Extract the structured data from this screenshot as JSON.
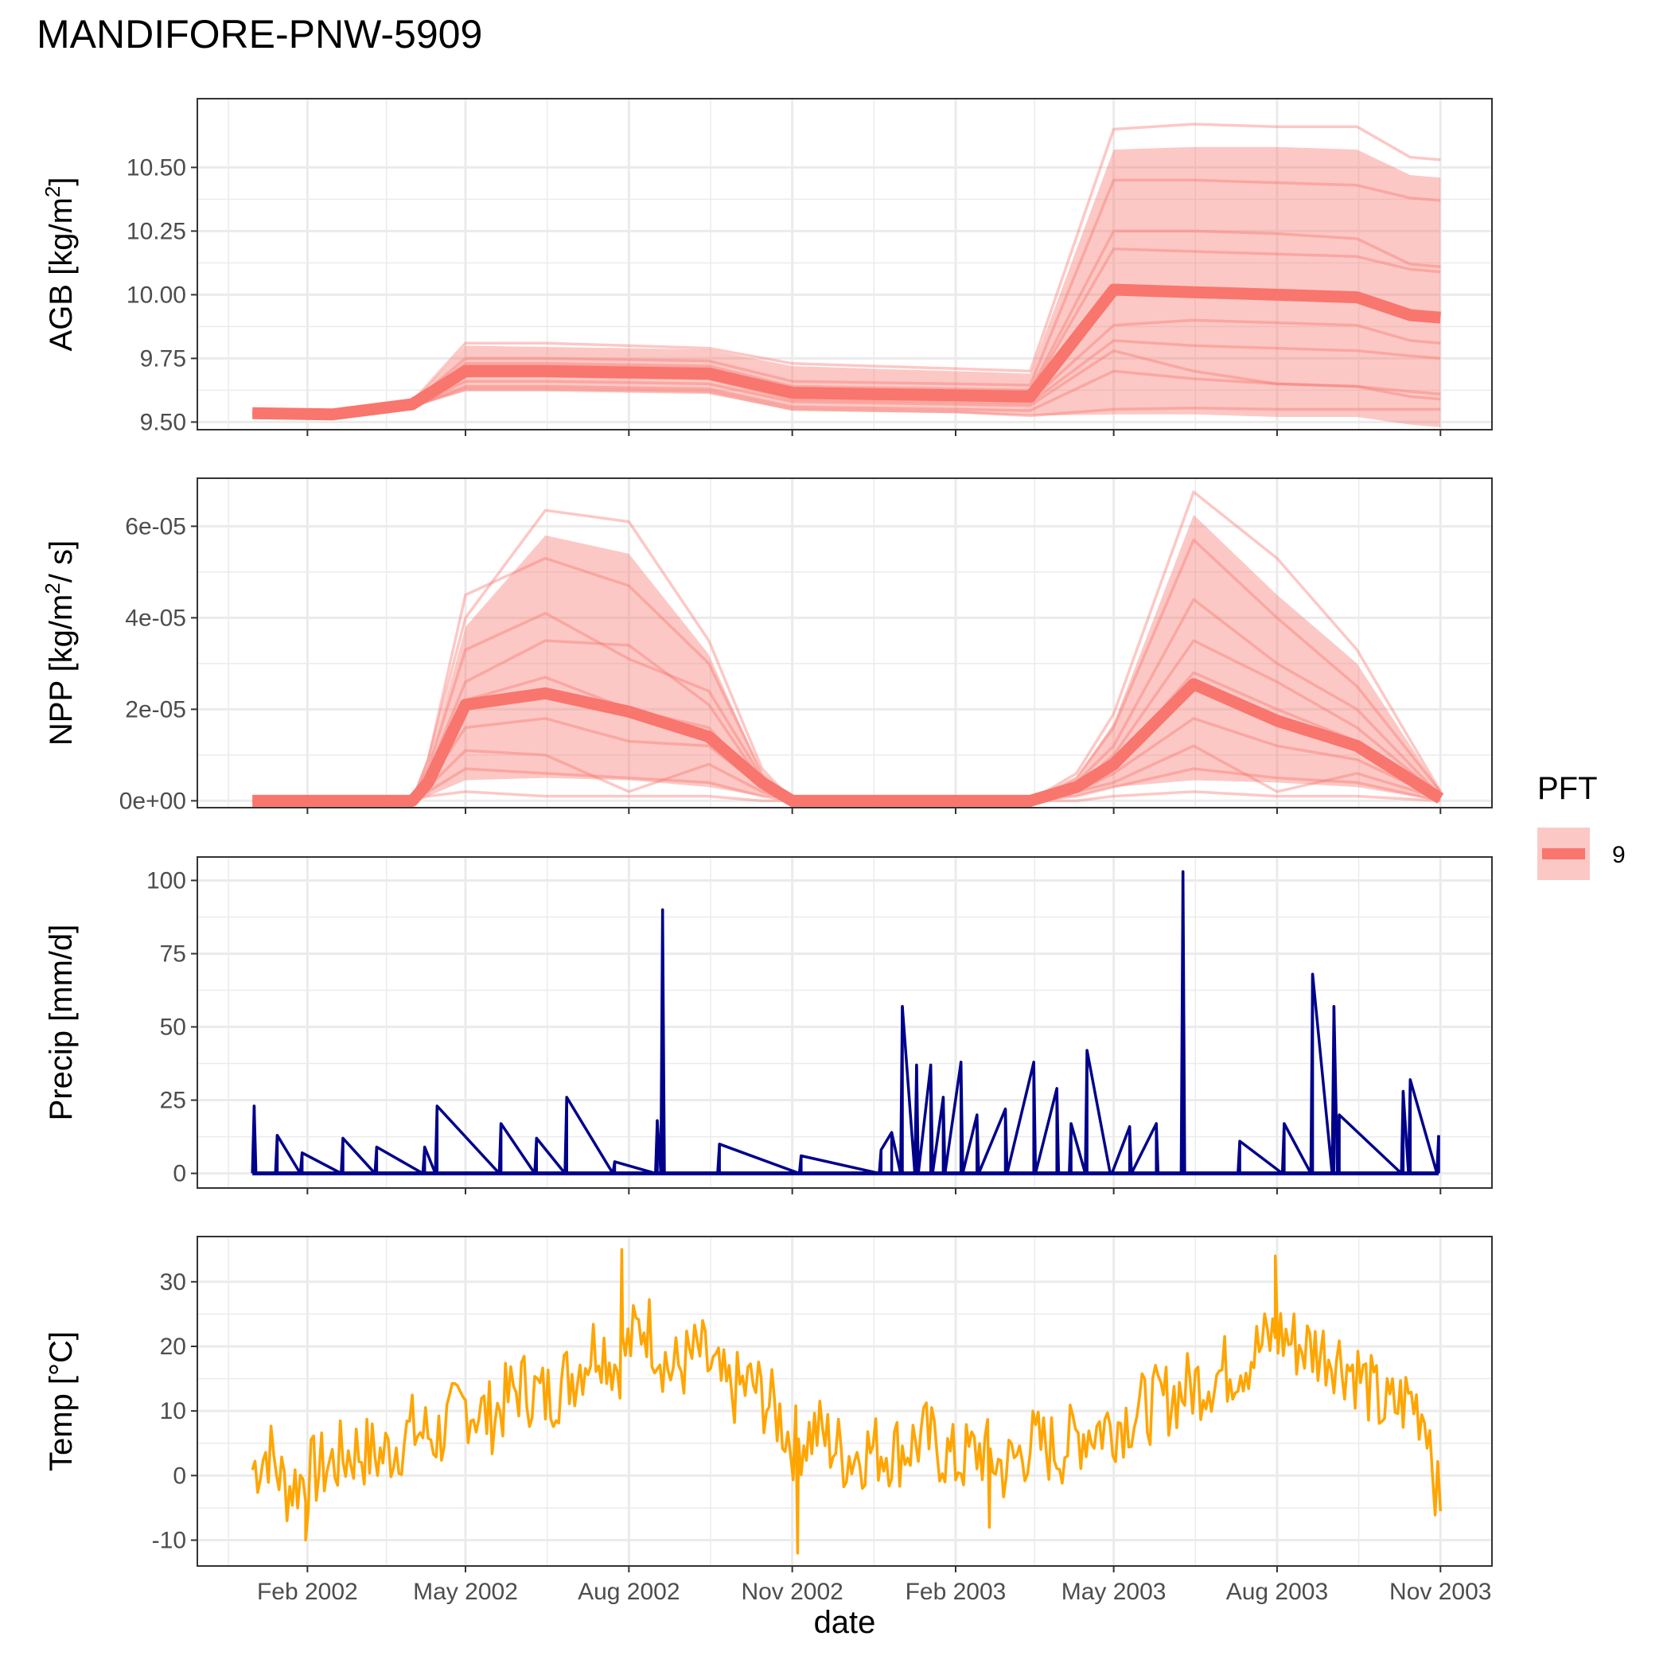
{
  "title": "MANDIFORE-PNW-5909",
  "x_axis": {
    "label": "date",
    "tick_labels": [
      "Feb 2002",
      "May 2002",
      "Aug 2002",
      "Nov 2002",
      "Feb 2003",
      "May 2003",
      "Aug 2003",
      "Nov 2003"
    ],
    "tick_dates": [
      "2002-02-01",
      "2002-05-01",
      "2002-08-01",
      "2002-11-01",
      "2003-02-01",
      "2003-05-01",
      "2003-08-01",
      "2003-11-01"
    ],
    "range": [
      "2001-12-01",
      "2003-11-30"
    ]
  },
  "legend": {
    "title": "PFT",
    "items": [
      {
        "label": "9",
        "line_color": "#F8766D",
        "band_color": "#F8766D"
      }
    ],
    "placement": "right"
  },
  "colors": {
    "pft": "#F8766D",
    "precip": "#00008B",
    "temp": "#FFA500",
    "grid": "#EBEBEB",
    "panel_border": "#333333"
  },
  "chart_data": [
    {
      "type": "line",
      "name": "agb",
      "ylabel": "AGB [kg/m²]",
      "ylabel_main": "AGB [kg/m",
      "ylabel_sup": "2",
      "ylabel_end": "]",
      "ylim": [
        9.47,
        10.77
      ],
      "yticks": [
        9.5,
        9.75,
        10.0,
        10.25,
        10.5
      ],
      "ytick_labels": [
        "9.50",
        "9.75",
        "10.00",
        "10.25",
        "10.50"
      ],
      "x": [
        "2002-01-01",
        "2002-02-15",
        "2002-04-01",
        "2002-05-01",
        "2002-06-15",
        "2002-08-01",
        "2002-09-15",
        "2002-11-01",
        "2002-12-15",
        "2003-02-01",
        "2003-03-15",
        "2003-05-01",
        "2003-06-15",
        "2003-08-01",
        "2003-09-15",
        "2003-10-15",
        "2003-11-01"
      ],
      "series": [
        {
          "name": "9",
          "role": "mean",
          "values": [
            9.535,
            9.53,
            9.57,
            9.7,
            9.7,
            9.695,
            9.69,
            9.615,
            9.61,
            9.605,
            9.6,
            10.02,
            10.01,
            10.0,
            9.99,
            9.92,
            9.91
          ]
        },
        {
          "role": "band_upper",
          "values": [
            9.54,
            9.535,
            9.58,
            9.8,
            9.795,
            9.79,
            9.785,
            9.72,
            9.71,
            9.7,
            9.69,
            10.57,
            10.58,
            10.58,
            10.57,
            10.47,
            10.46
          ]
        },
        {
          "role": "band_lower",
          "values": [
            9.53,
            9.525,
            9.56,
            9.62,
            9.62,
            9.615,
            9.61,
            9.545,
            9.54,
            9.535,
            9.525,
            9.53,
            9.53,
            9.52,
            9.52,
            9.49,
            9.48
          ]
        },
        {
          "role": "ensemble",
          "values": [
            9.54,
            9.535,
            9.58,
            9.81,
            9.81,
            9.8,
            9.79,
            9.73,
            9.72,
            9.71,
            9.7,
            10.65,
            10.67,
            10.66,
            10.66,
            10.54,
            10.53
          ]
        },
        {
          "role": "ensemble",
          "values": [
            9.535,
            9.53,
            9.575,
            9.75,
            9.75,
            9.745,
            9.74,
            9.66,
            9.655,
            9.65,
            9.645,
            10.45,
            10.45,
            10.44,
            10.43,
            10.38,
            10.37
          ]
        },
        {
          "role": "ensemble",
          "values": [
            9.535,
            9.53,
            9.57,
            9.73,
            9.73,
            9.725,
            9.72,
            9.64,
            9.635,
            9.63,
            9.625,
            10.25,
            10.25,
            10.24,
            10.22,
            10.12,
            10.11
          ]
        },
        {
          "role": "ensemble",
          "values": [
            9.535,
            9.53,
            9.57,
            9.72,
            9.72,
            9.715,
            9.71,
            9.63,
            9.625,
            9.62,
            9.615,
            10.18,
            10.17,
            10.16,
            10.15,
            10.1,
            10.09
          ]
        },
        {
          "role": "ensemble",
          "values": [
            9.535,
            9.53,
            9.565,
            9.69,
            9.69,
            9.685,
            9.68,
            9.6,
            9.595,
            9.59,
            9.585,
            9.88,
            9.9,
            9.89,
            9.88,
            9.82,
            9.81
          ]
        },
        {
          "role": "ensemble",
          "values": [
            9.53,
            9.525,
            9.565,
            9.68,
            9.68,
            9.675,
            9.67,
            9.59,
            9.585,
            9.58,
            9.575,
            9.82,
            9.8,
            9.79,
            9.78,
            9.76,
            9.75
          ]
        },
        {
          "role": "ensemble",
          "values": [
            9.53,
            9.525,
            9.56,
            9.66,
            9.66,
            9.655,
            9.65,
            9.58,
            9.575,
            9.57,
            9.565,
            9.78,
            9.7,
            9.65,
            9.64,
            9.62,
            9.61
          ]
        },
        {
          "role": "ensemble",
          "values": [
            9.53,
            9.525,
            9.56,
            9.64,
            9.64,
            9.635,
            9.63,
            9.56,
            9.555,
            9.55,
            9.545,
            9.7,
            9.67,
            9.65,
            9.64,
            9.6,
            9.59
          ]
        },
        {
          "role": "ensemble",
          "values": [
            9.53,
            9.525,
            9.56,
            9.63,
            9.63,
            9.625,
            9.62,
            9.55,
            9.545,
            9.54,
            9.525,
            9.55,
            9.555,
            9.55,
            9.55,
            9.55,
            9.55
          ]
        }
      ]
    },
    {
      "type": "line",
      "name": "npp",
      "ylabel": "NPP [kg/m²/ s]",
      "ylabel_main": "NPP [kg/m",
      "ylabel_sup": "2",
      "ylabel_end": "/ s]",
      "ylim": [
        -1.5e-06,
        7.05e-05
      ],
      "yticks": [
        0,
        2e-05,
        4e-05,
        6e-05
      ],
      "ytick_labels": [
        "0e+00",
        "2e-05",
        "4e-05",
        "6e-05"
      ],
      "x": [
        "2002-01-01",
        "2002-04-01",
        "2002-04-10",
        "2002-05-01",
        "2002-06-15",
        "2002-08-01",
        "2002-09-15",
        "2002-10-15",
        "2002-11-01",
        "2003-03-15",
        "2003-04-10",
        "2003-05-01",
        "2003-06-15",
        "2003-08-01",
        "2003-09-15",
        "2003-11-01"
      ],
      "series": [
        {
          "name": "9",
          "role": "mean",
          "values": [
            0,
            0,
            4e-06,
            2.1e-05,
            2.35e-05,
            1.95e-05,
            1.4e-05,
            4e-06,
            0,
            0,
            3e-06,
            8e-06,
            2.55e-05,
            1.75e-05,
            1.2e-05,
            5e-07
          ]
        },
        {
          "role": "band_upper",
          "values": [
            0,
            0,
            8e-06,
            3.8e-05,
            5.8e-05,
            5.4e-05,
            3.2e-05,
            6e-06,
            0,
            0,
            5e-06,
            1.7e-05,
            6.25e-05,
            4.5e-05,
            3e-05,
            2e-06
          ]
        },
        {
          "role": "band_lower",
          "values": [
            0,
            0,
            1e-06,
            4.5e-06,
            5e-06,
            4.5e-06,
            3e-06,
            1e-06,
            0,
            0,
            1e-06,
            3e-06,
            4.5e-06,
            4e-06,
            3e-06,
            0
          ]
        },
        {
          "role": "ensemble",
          "values": [
            0,
            0,
            9e-06,
            4e-05,
            6.35e-05,
            6.1e-05,
            3.5e-05,
            7e-06,
            0,
            0,
            6e-06,
            1.9e-05,
            6.75e-05,
            5.3e-05,
            3.3e-05,
            2e-06
          ]
        },
        {
          "role": "ensemble",
          "values": [
            0,
            0,
            9e-06,
            4.5e-05,
            5.3e-05,
            4.7e-05,
            3e-05,
            6e-06,
            0,
            0,
            5e-06,
            1.6e-05,
            5.7e-05,
            4e-05,
            2.5e-05,
            2e-06
          ]
        },
        {
          "role": "ensemble",
          "values": [
            0,
            0,
            7e-06,
            3.3e-05,
            4.1e-05,
            3.1e-05,
            2.4e-05,
            5e-06,
            0,
            0,
            4e-06,
            1.2e-05,
            4.4e-05,
            3e-05,
            2e-05,
            1e-06
          ]
        },
        {
          "role": "ensemble",
          "values": [
            0,
            0,
            6e-06,
            2.6e-05,
            3.5e-05,
            3.4e-05,
            2.1e-05,
            4e-06,
            0,
            0,
            3e-06,
            1e-05,
            3.5e-05,
            2.6e-05,
            1.6e-05,
            1e-06
          ]
        },
        {
          "role": "ensemble",
          "values": [
            0,
            0,
            5e-06,
            2.2e-05,
            2.7e-05,
            2e-05,
            1.6e-05,
            3e-06,
            0,
            0,
            3e-06,
            8e-06,
            2.8e-05,
            2e-05,
            1.3e-05,
            1e-06
          ]
        },
        {
          "role": "ensemble",
          "values": [
            0,
            0,
            4e-06,
            1.6e-05,
            1.8e-05,
            1.3e-05,
            1.2e-05,
            3e-06,
            0,
            0,
            2e-06,
            6e-06,
            1.8e-05,
            1.2e-05,
            9e-06,
            5e-07
          ]
        },
        {
          "role": "ensemble",
          "values": [
            0,
            0,
            3e-06,
            1.1e-05,
            1e-05,
            2e-06,
            8e-06,
            2e-06,
            0,
            0,
            2e-06,
            4e-06,
            1.2e-05,
            2e-06,
            6e-06,
            5e-07
          ]
        },
        {
          "role": "ensemble",
          "values": [
            0,
            0,
            2e-06,
            7e-06,
            6e-06,
            5e-06,
            4e-06,
            1e-06,
            0,
            0,
            1e-06,
            3e-06,
            7e-06,
            5e-06,
            4e-06,
            0
          ]
        },
        {
          "role": "ensemble",
          "values": [
            0,
            0,
            1e-06,
            2e-06,
            1e-06,
            1e-06,
            1e-06,
            0,
            0,
            0,
            0,
            1e-06,
            2e-06,
            1e-06,
            1e-06,
            0
          ]
        }
      ]
    },
    {
      "type": "line",
      "name": "precip",
      "ylabel": "Precip [mm/d]",
      "ylim": [
        -5,
        108
      ],
      "yticks": [
        0,
        25,
        50,
        75,
        100
      ],
      "ytick_labels": [
        "0",
        "25",
        "50",
        "75",
        "100"
      ],
      "x": [
        "2002-01-01",
        "2002-01-02",
        "2002-01-03",
        "2002-01-14",
        "2002-01-15",
        "2002-01-28",
        "2002-01-29",
        "2002-02-20",
        "2002-02-21",
        "2002-03-11",
        "2002-03-12",
        "2002-04-07",
        "2002-04-08",
        "2002-04-14",
        "2002-04-15",
        "2002-05-20",
        "2002-05-21",
        "2002-06-09",
        "2002-06-10",
        "2002-06-26",
        "2002-06-27",
        "2002-07-23",
        "2002-07-24",
        "2002-08-16",
        "2002-08-17",
        "2002-08-19",
        "2002-08-20",
        "2002-08-21",
        "2002-09-20",
        "2002-09-21",
        "2002-11-05",
        "2002-11-06",
        "2002-12-20",
        "2002-12-21",
        "2002-12-27",
        "2003-01-01",
        "2003-01-02",
        "2003-01-09",
        "2003-01-10",
        "2003-01-11",
        "2003-01-18",
        "2003-01-19",
        "2003-01-25",
        "2003-01-26",
        "2003-02-04",
        "2003-02-05",
        "2003-02-13",
        "2003-02-14",
        "2003-03-01",
        "2003-03-02",
        "2003-03-17",
        "2003-03-18",
        "2003-03-30",
        "2003-03-31",
        "2003-04-06",
        "2003-04-07",
        "2003-04-15",
        "2003-04-16",
        "2003-04-29",
        "2003-04-30",
        "2003-05-10",
        "2003-05-11",
        "2003-05-25",
        "2003-05-26",
        "2003-06-08",
        "2003-06-09",
        "2003-06-10",
        "2003-07-10",
        "2003-07-11",
        "2003-08-04",
        "2003-08-05",
        "2003-08-20",
        "2003-08-21",
        "2003-09-01",
        "2003-09-02",
        "2003-09-04",
        "2003-09-05",
        "2003-10-10",
        "2003-10-11",
        "2003-10-14",
        "2003-10-15",
        "2003-10-30",
        "2003-10-31"
      ],
      "values": [
        0,
        23,
        0,
        0,
        13,
        0,
        7,
        0,
        12,
        0,
        9,
        0,
        9,
        0,
        23,
        0,
        17,
        0,
        12,
        0,
        26,
        0,
        4,
        0,
        18,
        0,
        90,
        0,
        0,
        10,
        0,
        6,
        0,
        8,
        14,
        0,
        57,
        0,
        37,
        0,
        37,
        0,
        26,
        0,
        38,
        0,
        20,
        0,
        22,
        0,
        38,
        0,
        29,
        0,
        0,
        17,
        0,
        42,
        0,
        0,
        16,
        0,
        17,
        0,
        0,
        103,
        0,
        0,
        11,
        0,
        17,
        0,
        68,
        0,
        57,
        0,
        20,
        0,
        28,
        0,
        32,
        0,
        13
      ]
    },
    {
      "type": "line",
      "name": "temp",
      "ylabel": "Temp [°C]",
      "ylim": [
        -14,
        37
      ],
      "yticks": [
        -10,
        0,
        10,
        20,
        30
      ],
      "ytick_labels": [
        "-10",
        "0",
        "10",
        "20",
        "30"
      ],
      "x": [
        "2002-01-01",
        "2002-01-10",
        "2002-01-20",
        "2002-02-01",
        "2002-02-15",
        "2002-03-01",
        "2002-03-15",
        "2002-04-01",
        "2002-04-15",
        "2002-05-01",
        "2002-05-15",
        "2002-06-01",
        "2002-06-15",
        "2002-07-01",
        "2002-07-15",
        "2002-07-25",
        "2002-08-10",
        "2002-08-25",
        "2002-09-10",
        "2002-09-25",
        "2002-10-10",
        "2002-10-25",
        "2002-11-01",
        "2002-11-15",
        "2002-12-01",
        "2002-12-15",
        "2003-01-01",
        "2003-01-15",
        "2003-02-01",
        "2003-02-15",
        "2003-03-01",
        "2003-03-15",
        "2003-04-01",
        "2003-04-15",
        "2003-05-01",
        "2003-05-15",
        "2003-06-01",
        "2003-06-15",
        "2003-07-01",
        "2003-07-15",
        "2003-08-01",
        "2003-08-15",
        "2003-09-01",
        "2003-09-15",
        "2003-10-01",
        "2003-10-15",
        "2003-10-25",
        "2003-11-01"
      ],
      "values": [
        1,
        4,
        -2,
        0,
        2,
        4,
        3,
        7,
        6,
        11,
        9,
        14,
        12,
        16,
        21,
        17,
        24,
        16,
        19,
        13,
        14,
        9,
        5,
        7,
        3,
        4,
        4,
        6,
        2,
        4,
        1,
        5,
        4,
        7,
        8,
        10,
        12,
        14,
        16,
        18,
        22,
        20,
        19,
        16,
        10,
        12,
        9,
        -7
      ],
      "extremes": [
        {
          "x": "2002-01-31",
          "y": -10
        },
        {
          "x": "2002-07-28",
          "y": 35
        },
        {
          "x": "2002-11-04",
          "y": -12
        },
        {
          "x": "2003-02-20",
          "y": -8
        },
        {
          "x": "2003-07-31",
          "y": 34
        }
      ]
    }
  ]
}
